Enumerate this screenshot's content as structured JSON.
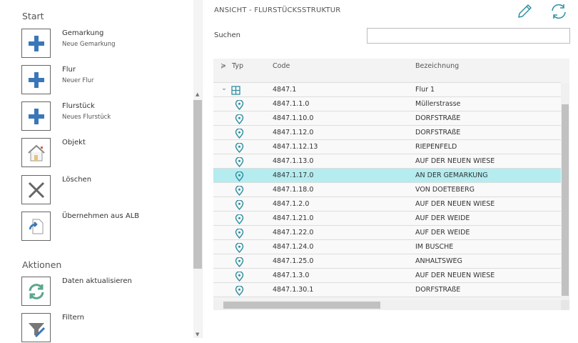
{
  "sidebar": {
    "sections": [
      {
        "label": "Start"
      },
      {
        "label": "Aktionen"
      }
    ],
    "commands": [
      {
        "title": "Gemarkung",
        "subtitle": "Neue Gemarkung",
        "icon": "plus-icon"
      },
      {
        "title": "Flur",
        "subtitle": "Neuer Flur",
        "icon": "plus-icon"
      },
      {
        "title": "Flurstück",
        "subtitle": "Neues Flurstück",
        "icon": "plus-icon"
      },
      {
        "title": "Objekt",
        "subtitle": "",
        "icon": "house-icon"
      },
      {
        "title": "Löschen",
        "subtitle": "",
        "icon": "close-icon"
      },
      {
        "title": "Übernehmen aus ALB",
        "subtitle": "",
        "icon": "import-icon"
      },
      {
        "title": "Daten aktualisieren",
        "subtitle": "",
        "icon": "refresh-icon"
      },
      {
        "title": "Filtern",
        "subtitle": "",
        "icon": "filter-icon"
      }
    ]
  },
  "header": {
    "title": "ANSICHT - FLURSTÜCKSSTRUKTUR",
    "search_label": "Suchen",
    "search_value": ""
  },
  "colors": {
    "accent": "#2e8fa0",
    "selected_row": "#b5ecf0",
    "plus": "#3a77b8"
  },
  "grid": {
    "columns": [
      "Typ",
      "Code",
      "Bezeichnung"
    ],
    "rows": [
      {
        "type": "flur",
        "code": "4847.1",
        "name": "Flur 1"
      },
      {
        "type": "flurstueck",
        "code": "4847.1.1.0",
        "name": "Müllerstrasse"
      },
      {
        "type": "flurstueck",
        "code": "4847.1.10.0",
        "name": "DORFSTRAßE"
      },
      {
        "type": "flurstueck",
        "code": "4847.1.12.0",
        "name": "DORFSTRAßE"
      },
      {
        "type": "flurstueck",
        "code": "4847.1.12.13",
        "name": "RIEPENFELD"
      },
      {
        "type": "flurstueck",
        "code": "4847.1.13.0",
        "name": "AUF DER NEUEN WIESE"
      },
      {
        "type": "flurstueck",
        "code": "4847.1.17.0",
        "name": "AN DER GEMARKUNG",
        "selected": true
      },
      {
        "type": "flurstueck",
        "code": "4847.1.18.0",
        "name": "VON DOETEBERG"
      },
      {
        "type": "flurstueck",
        "code": "4847.1.2.0",
        "name": "AUF DER NEUEN WIESE"
      },
      {
        "type": "flurstueck",
        "code": "4847.1.21.0",
        "name": "AUF DER WEIDE"
      },
      {
        "type": "flurstueck",
        "code": "4847.1.22.0",
        "name": "AUF DER WEIDE"
      },
      {
        "type": "flurstueck",
        "code": "4847.1.24.0",
        "name": "IM BUSCHE"
      },
      {
        "type": "flurstueck",
        "code": "4847.1.25.0",
        "name": "ANHALTSWEG"
      },
      {
        "type": "flurstueck",
        "code": "4847.1.3.0",
        "name": "AUF DER NEUEN WIESE"
      },
      {
        "type": "flurstueck",
        "code": "4847.1.30.1",
        "name": "DORFSTRAßE"
      }
    ]
  }
}
